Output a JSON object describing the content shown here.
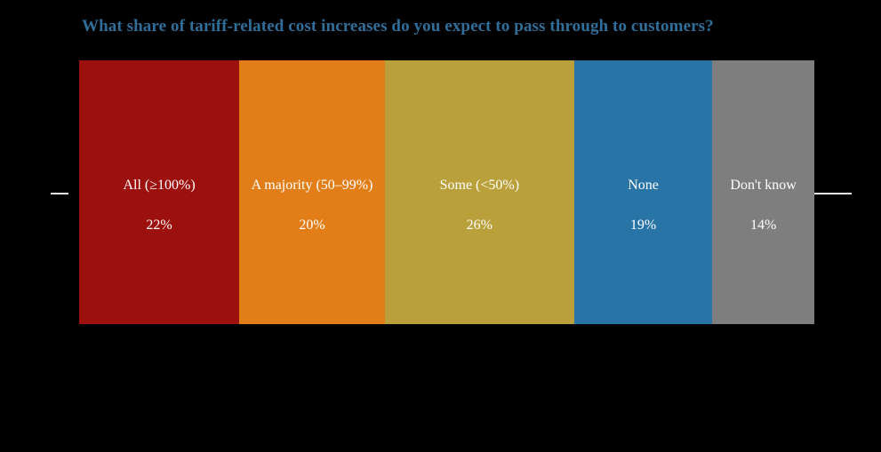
{
  "title": {
    "text": "What share of tariff-related cost increases do you expect to pass through to customers?",
    "color": "#306E99"
  },
  "chart_data": {
    "type": "bar",
    "variant": "single-row-variable-width",
    "title": "What share of tariff-related cost increases do you expect to pass through to customers?",
    "categories": [
      "All (≥100%)",
      "A majority (50–99%)",
      "Some (<50%)",
      "None",
      "Don't know"
    ],
    "values": [
      22,
      20,
      26,
      19,
      14
    ],
    "value_labels": [
      "22%",
      "20%",
      "26%",
      "19%",
      "14%"
    ],
    "bar_colors": [
      "#9C100D",
      "#E27E18",
      "#BAA03A",
      "#2874A6",
      "#7E7E7E"
    ],
    "label_color": "#FFFFFF",
    "background_color": "#000000",
    "axis_line_color": "#E8E8E8",
    "layout_hints": {
      "bar_width_proportional_to_value": true,
      "labels_inside_bars": true,
      "grid": false,
      "legend": "none",
      "axis_line": "horizontal midline, visible only left and right of bars"
    }
  }
}
